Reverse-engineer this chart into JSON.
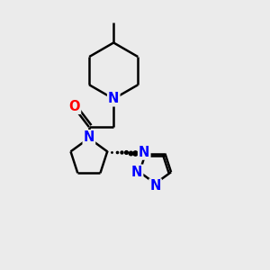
{
  "bg_color": "#ebebeb",
  "bond_color": "#000000",
  "N_color": "#0000ff",
  "O_color": "#ff0000",
  "line_width": 1.8,
  "font_size": 10.5,
  "fig_size": [
    3.0,
    3.0
  ],
  "dpi": 100,
  "xlim": [
    0,
    10
  ],
  "ylim": [
    0,
    10
  ]
}
